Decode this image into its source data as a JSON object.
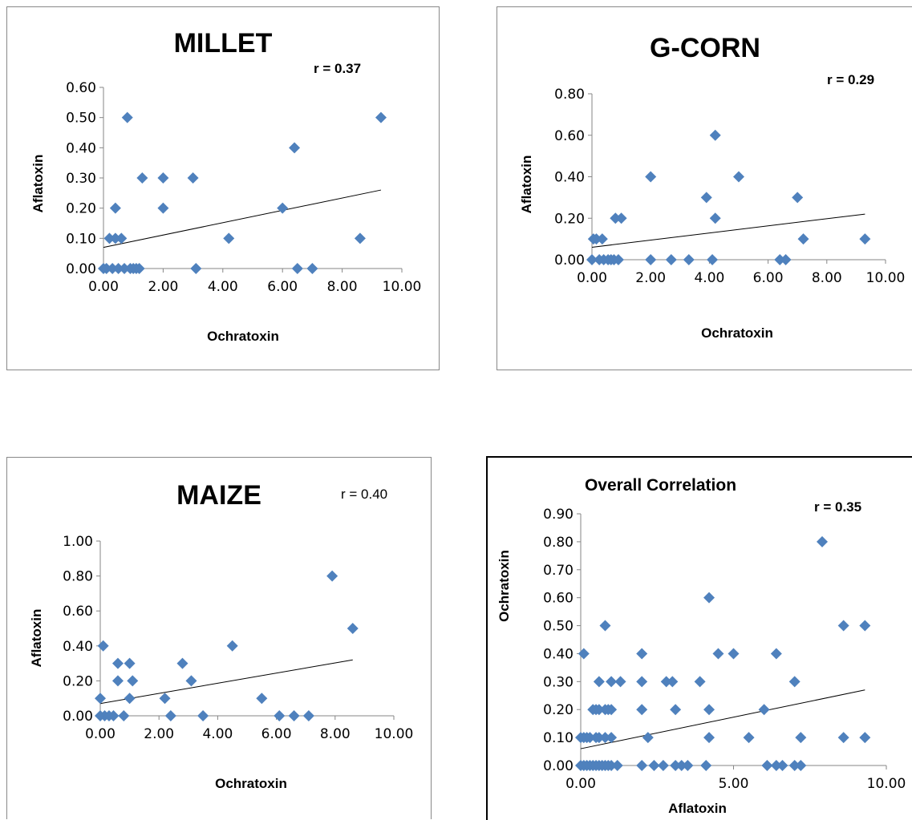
{
  "chart_data": [
    {
      "type": "scatter",
      "title": "MILLET",
      "annotation": "r = 0.37",
      "xlabel": "Ochratoxin",
      "ylabel": "Aflatoxin",
      "xlim": [
        0,
        10
      ],
      "ylim": [
        0,
        0.6
      ],
      "xticks": [
        "0.00",
        "2.00",
        "4.00",
        "6.00",
        "8.00",
        "10.00"
      ],
      "yticks": [
        "0.00",
        "0.10",
        "0.20",
        "0.30",
        "0.40",
        "0.50",
        "0.60"
      ],
      "points": [
        [
          0.0,
          0.0
        ],
        [
          0.1,
          0.0
        ],
        [
          0.2,
          0.1
        ],
        [
          0.3,
          0.0
        ],
        [
          0.4,
          0.1
        ],
        [
          0.4,
          0.2
        ],
        [
          0.5,
          0.0
        ],
        [
          0.6,
          0.1
        ],
        [
          0.7,
          0.0
        ],
        [
          0.8,
          0.5
        ],
        [
          0.9,
          0.0
        ],
        [
          1.0,
          0.0
        ],
        [
          1.1,
          0.0
        ],
        [
          1.2,
          0.0
        ],
        [
          1.3,
          0.3
        ],
        [
          2.0,
          0.3
        ],
        [
          2.0,
          0.2
        ],
        [
          3.0,
          0.3
        ],
        [
          3.1,
          0.0
        ],
        [
          4.2,
          0.1
        ],
        [
          6.0,
          0.2
        ],
        [
          6.4,
          0.4
        ],
        [
          6.5,
          0.0
        ],
        [
          7.0,
          0.0
        ],
        [
          8.6,
          0.1
        ],
        [
          9.3,
          0.5
        ]
      ],
      "trendline": [
        [
          0.0,
          0.07
        ],
        [
          9.3,
          0.26
        ]
      ],
      "marker_color": "#4F81BD"
    },
    {
      "type": "scatter",
      "title": "G-CORN",
      "annotation": "r = 0.29",
      "xlabel": "Ochratoxin",
      "ylabel": "Aflatoxin",
      "xlim": [
        0,
        10
      ],
      "ylim": [
        0,
        0.8
      ],
      "xticks": [
        "0.00",
        "2.00",
        "4.00",
        "6.00",
        "8.00",
        "10.00"
      ],
      "yticks": [
        "0.00",
        "0.20",
        "0.40",
        "0.60",
        "0.80"
      ],
      "points": [
        [
          0.0,
          0.0
        ],
        [
          0.05,
          0.1
        ],
        [
          0.15,
          0.1
        ],
        [
          0.25,
          0.0
        ],
        [
          0.35,
          0.1
        ],
        [
          0.4,
          0.0
        ],
        [
          0.55,
          0.0
        ],
        [
          0.65,
          0.0
        ],
        [
          0.75,
          0.0
        ],
        [
          0.8,
          0.2
        ],
        [
          0.9,
          0.0
        ],
        [
          1.0,
          0.2
        ],
        [
          2.0,
          0.0
        ],
        [
          2.0,
          0.4
        ],
        [
          2.7,
          0.0
        ],
        [
          3.3,
          0.0
        ],
        [
          3.9,
          0.3
        ],
        [
          4.1,
          0.0
        ],
        [
          4.2,
          0.6
        ],
        [
          4.2,
          0.2
        ],
        [
          5.0,
          0.4
        ],
        [
          6.4,
          0.0
        ],
        [
          6.6,
          0.0
        ],
        [
          7.0,
          0.3
        ],
        [
          7.2,
          0.1
        ],
        [
          9.3,
          0.1
        ]
      ],
      "trendline": [
        [
          0.0,
          0.06
        ],
        [
          9.3,
          0.22
        ]
      ],
      "marker_color": "#4F81BD"
    },
    {
      "type": "scatter",
      "title": "MAIZE",
      "annotation": "r = 0.40",
      "xlabel": "Ochratoxin",
      "ylabel": "Aflatoxin",
      "xlim": [
        0,
        10
      ],
      "ylim": [
        0,
        1
      ],
      "xticks": [
        "0.00",
        "2.00",
        "4.00",
        "6.00",
        "8.00",
        "10.00"
      ],
      "yticks": [
        "0.00",
        "0.20",
        "0.40",
        "0.60",
        "0.80",
        "1.00"
      ],
      "points": [
        [
          0.0,
          0.1
        ],
        [
          0.0,
          0.0
        ],
        [
          0.1,
          0.4
        ],
        [
          0.15,
          0.0
        ],
        [
          0.3,
          0.0
        ],
        [
          0.45,
          0.0
        ],
        [
          0.6,
          0.3
        ],
        [
          0.6,
          0.2
        ],
        [
          0.8,
          0.0
        ],
        [
          1.0,
          0.3
        ],
        [
          1.0,
          0.1
        ],
        [
          1.1,
          0.2
        ],
        [
          2.2,
          0.1
        ],
        [
          2.4,
          0.0
        ],
        [
          2.8,
          0.3
        ],
        [
          3.1,
          0.2
        ],
        [
          3.5,
          0.0
        ],
        [
          4.5,
          0.4
        ],
        [
          5.5,
          0.1
        ],
        [
          6.1,
          0.0
        ],
        [
          6.6,
          0.0
        ],
        [
          7.1,
          0.0
        ],
        [
          7.9,
          0.8
        ],
        [
          8.6,
          0.5
        ]
      ],
      "trendline": [
        [
          0.0,
          0.07
        ],
        [
          8.6,
          0.32
        ]
      ],
      "marker_color": "#4F81BD"
    },
    {
      "type": "scatter",
      "title": "Overall Correlation",
      "annotation": "r = 0.35",
      "xlabel": "Aflatoxin",
      "ylabel": "Ochratoxin",
      "xlim": [
        0,
        10
      ],
      "ylim": [
        0,
        0.9
      ],
      "xticks": [
        "0.00",
        "5.00",
        "10.00"
      ],
      "yticks": [
        "0.00",
        "0.10",
        "0.20",
        "0.30",
        "0.40",
        "0.50",
        "0.60",
        "0.70",
        "0.80",
        "0.90"
      ],
      "points": [
        [
          0.0,
          0.0
        ],
        [
          0.1,
          0.0
        ],
        [
          0.2,
          0.0
        ],
        [
          0.3,
          0.0
        ],
        [
          0.4,
          0.0
        ],
        [
          0.5,
          0.0
        ],
        [
          0.6,
          0.0
        ],
        [
          0.7,
          0.0
        ],
        [
          0.8,
          0.0
        ],
        [
          0.9,
          0.0
        ],
        [
          1.0,
          0.0
        ],
        [
          1.2,
          0.0
        ],
        [
          2.0,
          0.0
        ],
        [
          2.4,
          0.0
        ],
        [
          2.7,
          0.0
        ],
        [
          3.1,
          0.0
        ],
        [
          3.3,
          0.0
        ],
        [
          3.5,
          0.0
        ],
        [
          4.1,
          0.0
        ],
        [
          6.1,
          0.0
        ],
        [
          6.4,
          0.0
        ],
        [
          6.6,
          0.0
        ],
        [
          7.0,
          0.0
        ],
        [
          7.2,
          0.0
        ],
        [
          0.0,
          0.1
        ],
        [
          0.1,
          0.1
        ],
        [
          0.2,
          0.1
        ],
        [
          0.3,
          0.1
        ],
        [
          0.5,
          0.1
        ],
        [
          0.6,
          0.1
        ],
        [
          0.8,
          0.1
        ],
        [
          1.0,
          0.1
        ],
        [
          2.2,
          0.1
        ],
        [
          4.2,
          0.1
        ],
        [
          5.5,
          0.1
        ],
        [
          7.2,
          0.1
        ],
        [
          8.6,
          0.1
        ],
        [
          9.3,
          0.1
        ],
        [
          0.4,
          0.2
        ],
        [
          0.5,
          0.2
        ],
        [
          0.6,
          0.2
        ],
        [
          0.8,
          0.2
        ],
        [
          0.9,
          0.2
        ],
        [
          1.0,
          0.2
        ],
        [
          2.0,
          0.2
        ],
        [
          3.1,
          0.2
        ],
        [
          4.2,
          0.2
        ],
        [
          6.0,
          0.2
        ],
        [
          0.6,
          0.3
        ],
        [
          1.0,
          0.3
        ],
        [
          1.3,
          0.3
        ],
        [
          2.0,
          0.3
        ],
        [
          2.8,
          0.3
        ],
        [
          3.0,
          0.3
        ],
        [
          3.9,
          0.3
        ],
        [
          7.0,
          0.3
        ],
        [
          0.1,
          0.4
        ],
        [
          2.0,
          0.4
        ],
        [
          4.5,
          0.4
        ],
        [
          5.0,
          0.4
        ],
        [
          6.4,
          0.4
        ],
        [
          0.8,
          0.5
        ],
        [
          8.6,
          0.5
        ],
        [
          9.3,
          0.5
        ],
        [
          4.2,
          0.6
        ],
        [
          7.9,
          0.8
        ]
      ],
      "trendline": [
        [
          0.0,
          0.06
        ],
        [
          9.3,
          0.27
        ]
      ],
      "marker_color": "#4F81BD"
    }
  ]
}
